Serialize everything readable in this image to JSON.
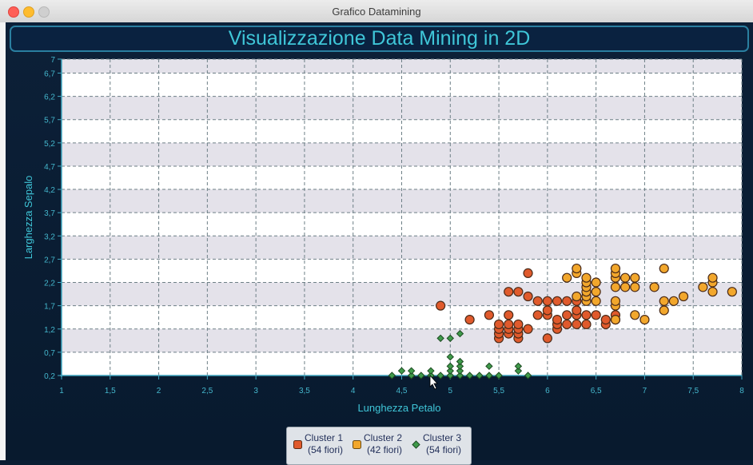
{
  "window": {
    "title": "Grafico Datamining"
  },
  "chart_data": {
    "type": "scatter",
    "title": "Visualizzazione Data Mining in 2D",
    "xlabel": "Lunghezza Petalo",
    "ylabel": "Larghezza Sepalo",
    "xlim": [
      1,
      8
    ],
    "ylim": [
      0.2,
      7
    ],
    "x_ticks": [
      "1",
      "1,5",
      "2",
      "2,5",
      "3",
      "3,5",
      "4",
      "4,5",
      "5",
      "5,5",
      "6",
      "6,5",
      "7",
      "7,5",
      "8"
    ],
    "y_ticks": [
      "0,2",
      "0,7",
      "1,2",
      "1,7",
      "2,2",
      "2,7",
      "3,2",
      "3,7",
      "4,2",
      "4,7",
      "5,2",
      "5,7",
      "6,2",
      "6,7",
      "7"
    ],
    "grid": true,
    "legend_position": "bottom-center",
    "series": [
      {
        "name": "Cluster 1",
        "count_label": "(54 fiori)",
        "color": "#e05a2c",
        "marker": "circle",
        "points": [
          [
            4.9,
            1.7
          ],
          [
            5.2,
            1.4
          ],
          [
            5.4,
            1.5
          ],
          [
            5.5,
            1.0
          ],
          [
            5.5,
            1.1
          ],
          [
            5.5,
            1.2
          ],
          [
            5.5,
            1.3
          ],
          [
            5.6,
            1.1
          ],
          [
            5.6,
            1.2
          ],
          [
            5.6,
            1.3
          ],
          [
            5.6,
            1.5
          ],
          [
            5.6,
            2.0
          ],
          [
            5.7,
            1.0
          ],
          [
            5.7,
            1.1
          ],
          [
            5.7,
            1.2
          ],
          [
            5.7,
            1.3
          ],
          [
            5.7,
            2.0
          ],
          [
            5.8,
            1.2
          ],
          [
            5.8,
            1.9
          ],
          [
            5.8,
            2.4
          ],
          [
            5.9,
            1.5
          ],
          [
            5.9,
            1.8
          ],
          [
            6.0,
            1.0
          ],
          [
            6.0,
            1.5
          ],
          [
            6.0,
            1.6
          ],
          [
            6.0,
            1.8
          ],
          [
            6.1,
            1.2
          ],
          [
            6.1,
            1.3
          ],
          [
            6.1,
            1.4
          ],
          [
            6.1,
            1.8
          ],
          [
            6.2,
            1.3
          ],
          [
            6.2,
            1.5
          ],
          [
            6.2,
            1.8
          ],
          [
            6.3,
            1.3
          ],
          [
            6.3,
            1.5
          ],
          [
            6.3,
            1.6
          ],
          [
            6.3,
            1.8
          ],
          [
            6.4,
            1.3
          ],
          [
            6.4,
            1.5
          ],
          [
            6.5,
            1.5
          ],
          [
            6.6,
            1.3
          ],
          [
            6.6,
            1.4
          ],
          [
            6.7,
            1.4
          ],
          [
            6.7,
            1.5
          ]
        ]
      },
      {
        "name": "Cluster 2",
        "count_label": "(42 fiori)",
        "color": "#f2a72c",
        "marker": "circle",
        "points": [
          [
            6.2,
            2.3
          ],
          [
            6.3,
            1.9
          ],
          [
            6.3,
            2.4
          ],
          [
            6.3,
            2.5
          ],
          [
            6.4,
            1.8
          ],
          [
            6.4,
            1.9
          ],
          [
            6.4,
            2.0
          ],
          [
            6.4,
            2.1
          ],
          [
            6.4,
            2.2
          ],
          [
            6.4,
            2.3
          ],
          [
            6.5,
            1.8
          ],
          [
            6.5,
            2.0
          ],
          [
            6.5,
            2.2
          ],
          [
            6.7,
            1.4
          ],
          [
            6.7,
            1.7
          ],
          [
            6.7,
            1.8
          ],
          [
            6.7,
            2.1
          ],
          [
            6.7,
            2.3
          ],
          [
            6.7,
            2.4
          ],
          [
            6.7,
            2.5
          ],
          [
            6.8,
            2.1
          ],
          [
            6.8,
            2.3
          ],
          [
            6.9,
            1.5
          ],
          [
            6.9,
            2.1
          ],
          [
            6.9,
            2.3
          ],
          [
            7.0,
            1.4
          ],
          [
            7.1,
            2.1
          ],
          [
            7.2,
            1.6
          ],
          [
            7.2,
            1.8
          ],
          [
            7.2,
            2.5
          ],
          [
            7.3,
            1.8
          ],
          [
            7.4,
            1.9
          ],
          [
            7.6,
            2.1
          ],
          [
            7.7,
            2.0
          ],
          [
            7.7,
            2.2
          ],
          [
            7.7,
            2.3
          ],
          [
            7.9,
            2.0
          ]
        ]
      },
      {
        "name": "Cluster 3",
        "count_label": "(54 fiori)",
        "color": "#3f9a4a",
        "marker": "diamond",
        "points": [
          [
            4.4,
            0.2
          ],
          [
            4.5,
            0.3
          ],
          [
            4.6,
            0.2
          ],
          [
            4.6,
            0.3
          ],
          [
            4.7,
            0.2
          ],
          [
            4.8,
            0.2
          ],
          [
            4.8,
            0.3
          ],
          [
            4.9,
            0.2
          ],
          [
            4.9,
            1.0
          ],
          [
            5.0,
            0.2
          ],
          [
            5.0,
            0.3
          ],
          [
            5.0,
            0.4
          ],
          [
            5.0,
            0.6
          ],
          [
            5.0,
            1.0
          ],
          [
            5.1,
            0.2
          ],
          [
            5.1,
            0.3
          ],
          [
            5.1,
            0.4
          ],
          [
            5.1,
            0.5
          ],
          [
            5.1,
            1.1
          ],
          [
            5.2,
            0.2
          ],
          [
            5.3,
            0.2
          ],
          [
            5.4,
            0.2
          ],
          [
            5.4,
            0.4
          ],
          [
            5.5,
            0.2
          ],
          [
            5.7,
            0.3
          ],
          [
            5.7,
            0.4
          ],
          [
            5.8,
            0.2
          ]
        ]
      }
    ]
  }
}
